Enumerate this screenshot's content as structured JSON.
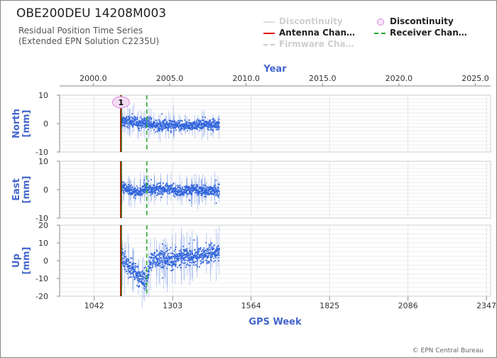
{
  "header": {
    "title": "OBE200DEU 14208M003",
    "subtitle_line1": "Residual Position Time Series",
    "subtitle_line2": "(Extended EPN Solution C2235U)"
  },
  "legend": {
    "items": [
      {
        "label": "Discontinuity",
        "style": "line",
        "color": "#dddddd",
        "dim": true
      },
      {
        "label": "Discontinuity",
        "style": "circle",
        "color": "#dd88dd",
        "dim": false
      },
      {
        "label": "Antenna Chan…",
        "style": "solid",
        "color": "#dd0000",
        "dim": false
      },
      {
        "label": "Receiver Chan…",
        "style": "dashed",
        "color": "#22aa22",
        "dim": false
      },
      {
        "label": "Firmware Cha…",
        "style": "dashed",
        "color": "#cccccc",
        "dim": true
      }
    ]
  },
  "copyright": "© EPN Central Bureau",
  "colors": {
    "data": "#3366dd",
    "axis_label": "#4466cc",
    "antenna": "#dd0000",
    "receiver": "#22aa22",
    "discontinuity_line": "#2a5a00",
    "discontinuity_marker": "#dd88dd"
  },
  "chart_data": {
    "type": "scatter",
    "x_top": {
      "label": "Year",
      "ticks": [
        "2000.0",
        "2005.0",
        "2010.0",
        "2015.0",
        "2020.0",
        "2025.0"
      ],
      "range": [
        1997.8,
        2026.0
      ]
    },
    "x_bottom": {
      "label": "GPS Week",
      "ticks": [
        "1042",
        "1303",
        "1564",
        "1825",
        "2086",
        "2347"
      ],
      "range": [
        927,
        2361
      ]
    },
    "data_span_weeks": [
      1131,
      1459
    ],
    "grid": true,
    "panels": [
      {
        "name": "North",
        "ylabel": "North\n[mm]",
        "ylim": [
          -10,
          10
        ],
        "yticks": [
          "10",
          "0",
          "-10"
        ],
        "series": [
          {
            "x": [
              1131,
              1160,
              1190,
              1215,
              1250,
              1290,
              1330,
              1370,
              1410,
              1455
            ],
            "y": [
              0.5,
              0.8,
              0.0,
              0.5,
              -0.8,
              -0.5,
              -1.0,
              -0.5,
              0.0,
              -0.5
            ]
          }
        ]
      },
      {
        "name": "East",
        "ylabel": "East\n[mm]",
        "ylim": [
          -10,
          10
        ],
        "yticks": [
          "10",
          "0",
          "-10"
        ],
        "series": [
          {
            "x": [
              1131,
              1160,
              1190,
              1215,
              1250,
              1290,
              1330,
              1370,
              1410,
              1455
            ],
            "y": [
              1.5,
              -0.5,
              -0.8,
              0.5,
              0.0,
              0.5,
              -0.5,
              0.0,
              -0.5,
              -0.3
            ]
          }
        ]
      },
      {
        "name": "Up",
        "ylabel": "Up\n[mm]",
        "ylim": [
          -20,
          20
        ],
        "yticks": [
          "20",
          "10",
          "0",
          "-10",
          "-20"
        ],
        "series": [
          {
            "x": [
              1131,
              1150,
              1175,
              1200,
              1215,
              1230,
              1260,
              1300,
              1340,
              1380,
              1420,
              1455
            ],
            "y": [
              5,
              -2,
              -6,
              -10,
              -12,
              0,
              2,
              0,
              3,
              2,
              4,
              5
            ]
          }
        ]
      }
    ],
    "events": {
      "discontinuity_week": 1131,
      "discontinuity_label": "1",
      "antenna_change_week": 1131,
      "receiver_change_weeks": [
        1131,
        1217
      ]
    }
  }
}
